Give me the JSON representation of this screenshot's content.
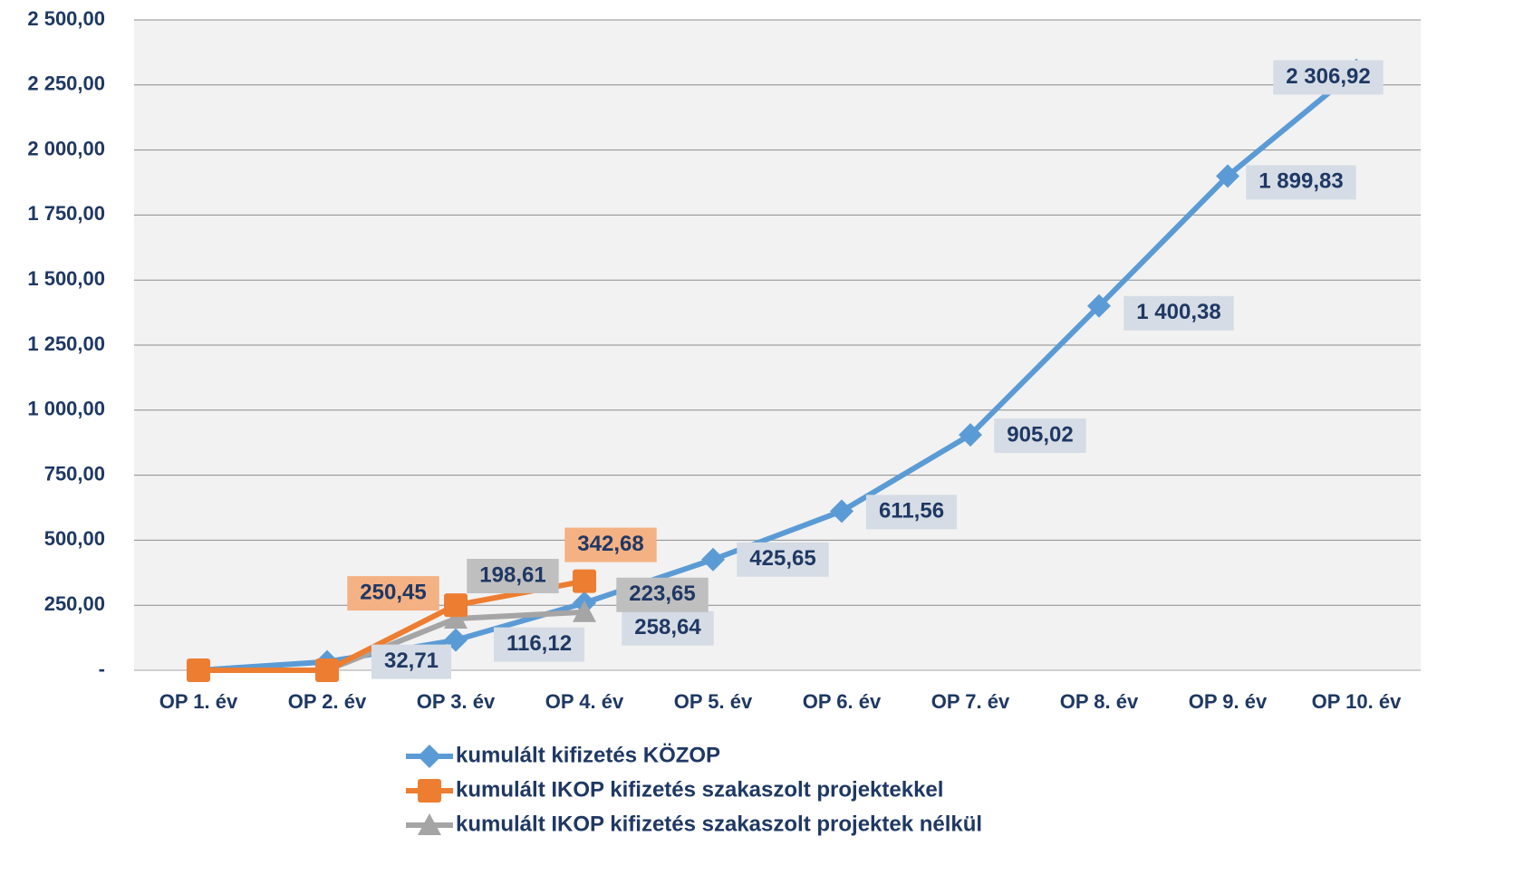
{
  "chart_data": {
    "type": "line",
    "categories": [
      "OP 1. év",
      "OP 2. év",
      "OP 3. év",
      "OP 4. év",
      "OP 5. év",
      "OP 6. év",
      "OP 7. év",
      "OP 8. év",
      "OP 9. év",
      "OP 10. év"
    ],
    "series": [
      {
        "name": "kumulált kifizetés KÖZOP",
        "color": "#5b9bd5",
        "marker": "diamond",
        "values": [
          0,
          32.71,
          116.12,
          258.64,
          425.65,
          611.56,
          905.02,
          1400.38,
          1899.83,
          2306.92
        ],
        "value_labels": [
          null,
          "32,71",
          "116,12",
          "258,64",
          "425,65",
          "611,56",
          "905,02",
          "1 400,38",
          "1 899,83",
          "2 306,92"
        ]
      },
      {
        "name": "kumulált IKOP kifizetés szakaszolt projektekkel",
        "color": "#ed7d31",
        "marker": "square",
        "values": [
          0,
          0,
          250.45,
          342.68,
          null,
          null,
          null,
          null,
          null,
          null
        ],
        "value_labels": [
          null,
          null,
          "250,45",
          "342,68",
          null,
          null,
          null,
          null,
          null,
          null
        ]
      },
      {
        "name": "kumulált IKOP kifizetés szakaszolt projektek nélkül",
        "color": "#a5a5a5",
        "marker": "triangle",
        "values": [
          0,
          0,
          198.61,
          223.65,
          null,
          null,
          null,
          null,
          null,
          null
        ],
        "value_labels": [
          null,
          null,
          "198,61",
          "223,65",
          null,
          null,
          null,
          null,
          null,
          null
        ]
      }
    ],
    "ylim": [
      0,
      2500
    ],
    "yticks": [
      {
        "value": 0,
        "label": "-"
      },
      {
        "value": 250,
        "label": "250,00"
      },
      {
        "value": 500,
        "label": "500,00"
      },
      {
        "value": 750,
        "label": "750,00"
      },
      {
        "value": 1000,
        "label": "1 000,00"
      },
      {
        "value": 1250,
        "label": "1 250,00"
      },
      {
        "value": 1500,
        "label": "1 500,00"
      },
      {
        "value": 1750,
        "label": "1 750,00"
      },
      {
        "value": 2000,
        "label": "2 000,00"
      },
      {
        "value": 2250,
        "label": "2 250,00"
      },
      {
        "value": 2500,
        "label": "2 500,00"
      }
    ],
    "grid": true,
    "legend": "bottom"
  }
}
